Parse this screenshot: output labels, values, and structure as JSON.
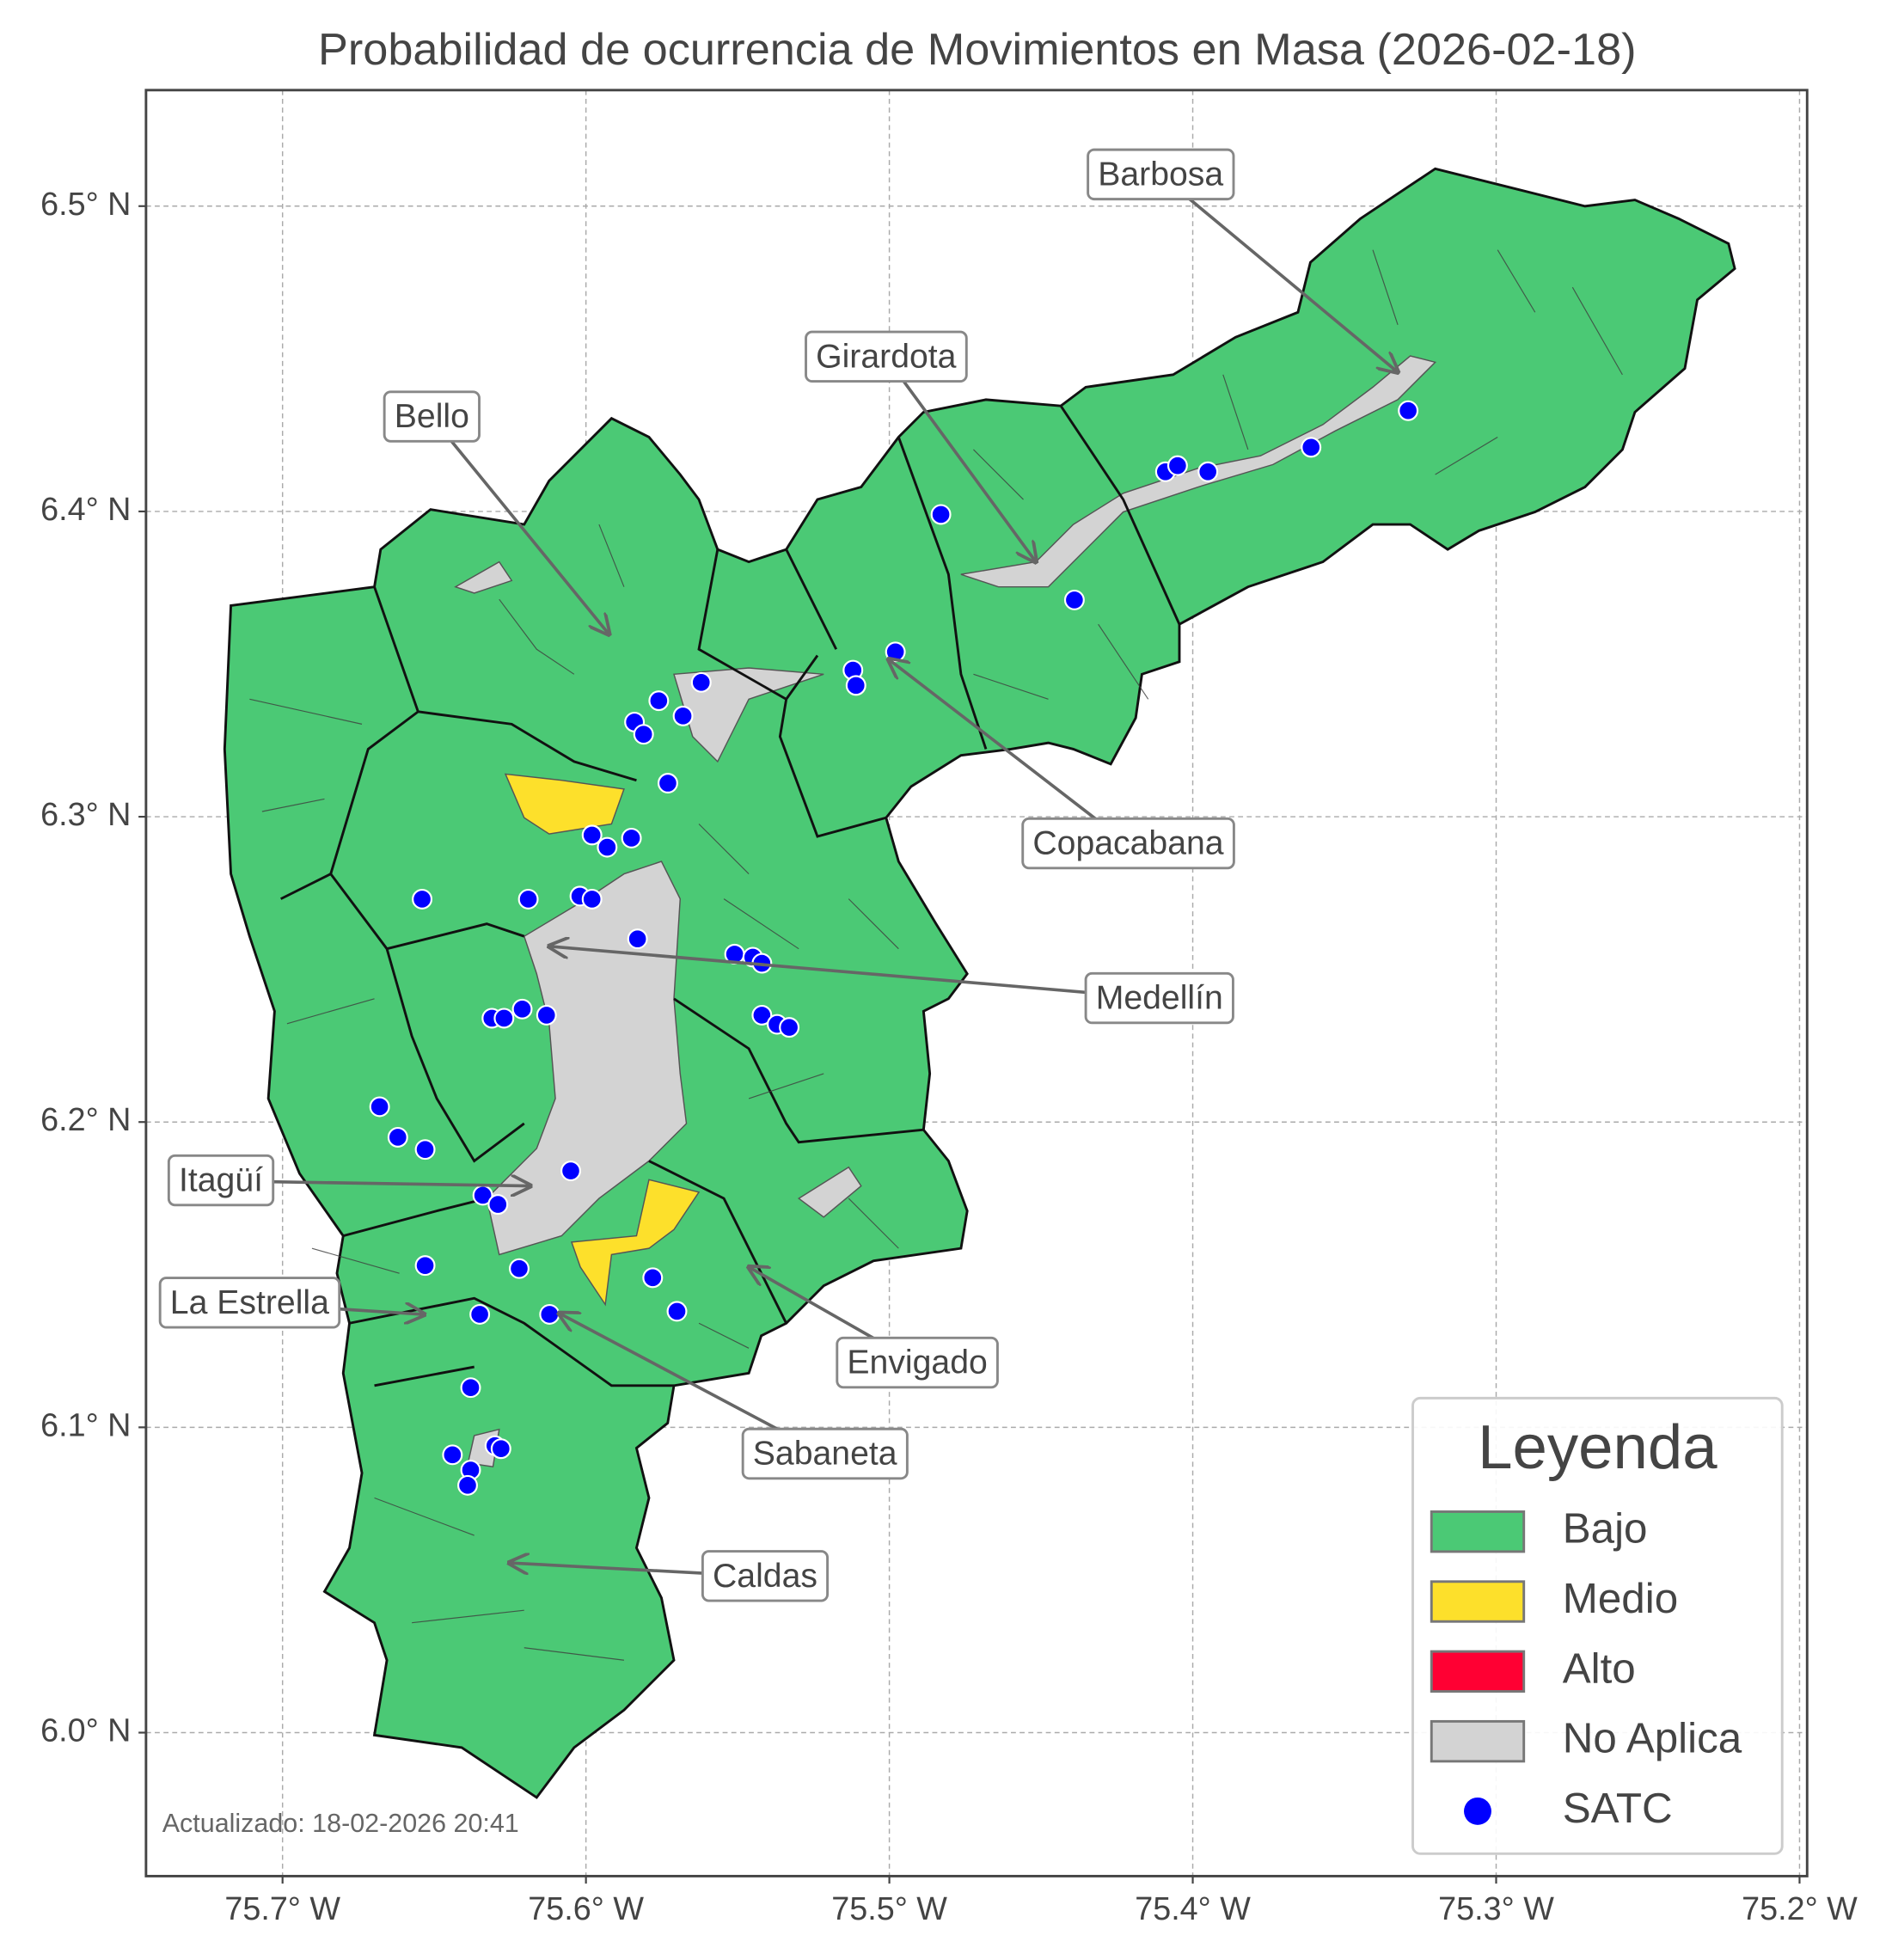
{
  "chart_data": {
    "type": "map",
    "title": "Probabilidad de ocurrencia de Movimientos en Masa (2026-02-18)",
    "xlim": [
      -75.745,
      -75.1975
    ],
    "ylim": [
      5.953,
      6.538
    ],
    "xticks": [
      {
        "value": -75.7,
        "label": "75.7° W"
      },
      {
        "value": -75.6,
        "label": "75.6° W"
      },
      {
        "value": -75.5,
        "label": "75.5° W"
      },
      {
        "value": -75.4,
        "label": "75.4° W"
      },
      {
        "value": -75.3,
        "label": "75.3° W"
      },
      {
        "value": -75.2,
        "label": "75.2° W"
      }
    ],
    "yticks": [
      {
        "value": 6.0,
        "label": "6.0° N"
      },
      {
        "value": 6.1,
        "label": "6.1° N"
      },
      {
        "value": 6.2,
        "label": "6.2° N"
      },
      {
        "value": 6.3,
        "label": "6.3° N"
      },
      {
        "value": 6.4,
        "label": "6.4° N"
      },
      {
        "value": 6.5,
        "label": "6.5° N"
      }
    ],
    "grid": true,
    "annotations": [
      "Barbosa",
      "Girardota",
      "Bello",
      "Copacabana",
      "Medellín",
      "Itagüí",
      "La Estrella",
      "Envigado",
      "Sabaneta",
      "Caldas"
    ],
    "legend": {
      "title": "Leyenda",
      "position": "lower right",
      "items": [
        {
          "name": "Bajo",
          "color": "#4bc975"
        },
        {
          "name": "Medio",
          "color": "#fde02b"
        },
        {
          "name": "Alto",
          "color": "#ff0033"
        },
        {
          "name": "No Aplica",
          "color": "#d3d3d3"
        }
      ]
    },
    "series": [
      {
        "name": "SATC",
        "color": "#0000ff",
        "x": [
          -75.483,
          -75.409,
          -75.405,
          -75.395,
          -75.361,
          -75.329,
          -75.439,
          -75.498,
          -75.512,
          -75.511,
          -75.562,
          -75.576,
          -75.568,
          -75.584,
          -75.581,
          -75.573,
          -75.598,
          -75.585,
          -75.593,
          -75.654,
          -75.619,
          -75.602,
          -75.598,
          -75.583,
          -75.551,
          -75.545,
          -75.542,
          -75.542,
          -75.537,
          -75.533,
          -75.621,
          -75.631,
          -75.627,
          -75.613,
          -75.668,
          -75.662,
          -75.653,
          -75.605,
          -75.634,
          -75.629,
          -75.653,
          -75.622,
          -75.578,
          -75.57,
          -75.612,
          -75.635,
          -75.638,
          -75.644,
          -75.63,
          -75.628,
          -75.638,
          -75.639
        ],
        "y": [
          6.399,
          6.413,
          6.415,
          6.413,
          6.421,
          6.433,
          6.371,
          6.354,
          6.348,
          6.343,
          6.344,
          6.338,
          6.333,
          6.331,
          6.327,
          6.311,
          6.294,
          6.293,
          6.29,
          6.273,
          6.273,
          6.274,
          6.273,
          6.26,
          6.255,
          6.254,
          6.252,
          6.235,
          6.232,
          6.231,
          6.237,
          6.234,
          6.234,
          6.235,
          6.205,
          6.195,
          6.191,
          6.184,
          6.176,
          6.173,
          6.153,
          6.152,
          6.149,
          6.138,
          6.137,
          6.137,
          6.113,
          6.091,
          6.094,
          6.093,
          6.086,
          6.081
        ]
      }
    ],
    "footnote": "Actualizado: 18-02-2026 20:41"
  }
}
